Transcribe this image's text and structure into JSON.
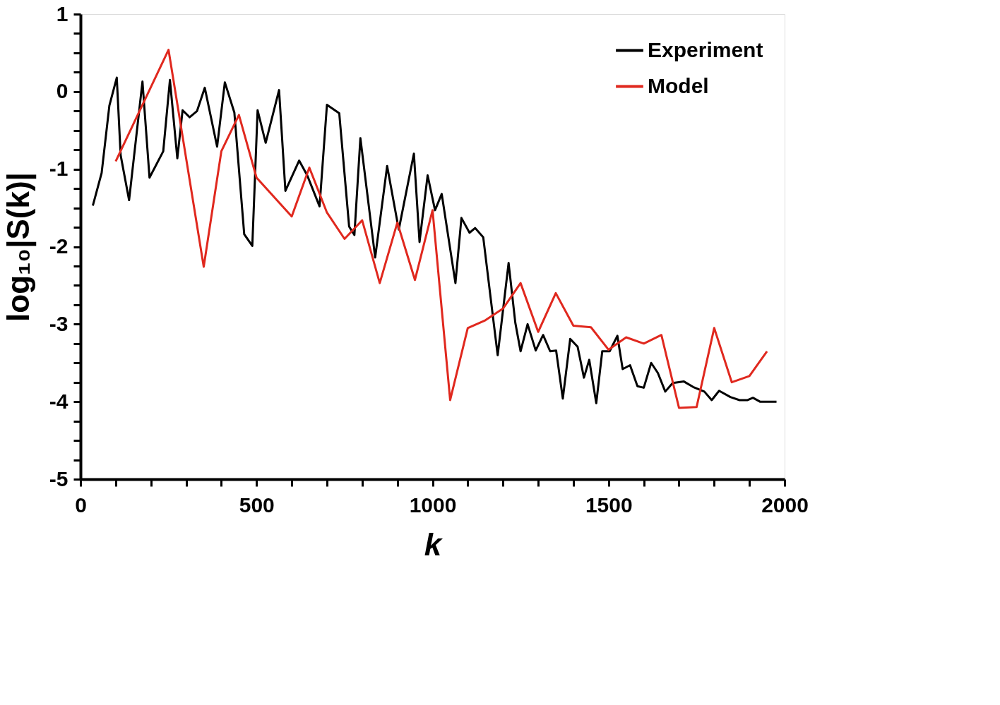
{
  "chart_data": {
    "type": "line",
    "xlabel": "k",
    "ylabel": "log₁₀|S(k)|",
    "xlim": [
      0,
      2000
    ],
    "ylim": [
      -5,
      1
    ],
    "xticks": [
      0,
      {
        "value": 100,
        "label": null
      },
      {
        "value": 200,
        "label": null
      },
      {
        "value": 300,
        "label": null
      },
      {
        "value": 400,
        "label": null
      },
      500,
      {
        "value": 600,
        "label": null
      },
      {
        "value": 700,
        "label": null
      },
      {
        "value": 800,
        "label": null
      },
      {
        "value": 900,
        "label": null
      },
      1000,
      {
        "value": 1100,
        "label": null
      },
      {
        "value": 1200,
        "label": null
      },
      {
        "value": 1300,
        "label": null
      },
      {
        "value": 1400,
        "label": null
      },
      1500,
      {
        "value": 1600,
        "label": null
      },
      {
        "value": 1700,
        "label": null
      },
      {
        "value": 1800,
        "label": null
      },
      {
        "value": 1900,
        "label": null
      },
      2000
    ],
    "yticks": [
      -5,
      {
        "value": -4.75,
        "label": null
      },
      {
        "value": -4.5,
        "label": null
      },
      {
        "value": -4.25,
        "label": null
      },
      -4,
      {
        "value": -3.75,
        "label": null
      },
      {
        "value": -3.5,
        "label": null
      },
      {
        "value": -3.25,
        "label": null
      },
      -3,
      {
        "value": -2.75,
        "label": null
      },
      {
        "value": -2.5,
        "label": null
      },
      {
        "value": -2.25,
        "label": null
      },
      -2,
      {
        "value": -1.75,
        "label": null
      },
      {
        "value": -1.5,
        "label": null
      },
      {
        "value": -1.25,
        "label": null
      },
      -1,
      {
        "value": -0.75,
        "label": null
      },
      {
        "value": -0.5,
        "label": null
      },
      {
        "value": -0.25,
        "label": null
      },
      0,
      {
        "value": 0.25,
        "label": null
      },
      {
        "value": 0.5,
        "label": null
      },
      {
        "value": 0.75,
        "label": null
      },
      1
    ],
    "grid": false,
    "legend": "top right",
    "line_style": "solid",
    "series": [
      {
        "name": "Experiment",
        "color": "#000000",
        "x": [
          35,
          60,
          82,
          103,
          114,
          138,
          176,
          196,
          235,
          254,
          275,
          290,
          310,
          331,
          353,
          388,
          410,
          437,
          465,
          488,
          503,
          526,
          564,
          582,
          621,
          644,
          679,
          700,
          735,
          763,
          778,
          795,
          837,
          871,
          904,
          947,
          963,
          986,
          1007,
          1026,
          1065,
          1082,
          1105,
          1121,
          1144,
          1173,
          1185,
          1216,
          1235,
          1250,
          1270,
          1293,
          1314,
          1334,
          1351,
          1370,
          1391,
          1412,
          1430,
          1445,
          1465,
          1482,
          1503,
          1525,
          1540,
          1561,
          1582,
          1600,
          1621,
          1640,
          1661,
          1682,
          1714,
          1740,
          1772,
          1793,
          1814,
          1846,
          1872,
          1895,
          1910,
          1930,
          1977
        ],
        "values": [
          -1.47,
          -1.05,
          -0.18,
          0.18,
          -0.82,
          -1.4,
          0.13,
          -1.11,
          -0.77,
          0.15,
          -0.86,
          -0.24,
          -0.33,
          -0.25,
          0.05,
          -0.71,
          0.12,
          -0.27,
          -1.84,
          -1.99,
          -0.24,
          -0.66,
          0.02,
          -1.28,
          -0.89,
          -1.08,
          -1.48,
          -0.17,
          -0.28,
          -1.74,
          -1.85,
          -0.6,
          -2.14,
          -0.96,
          -1.78,
          -0.8,
          -1.94,
          -1.08,
          -1.53,
          -1.32,
          -2.47,
          -1.63,
          -1.82,
          -1.76,
          -1.88,
          -2.96,
          -3.4,
          -2.21,
          -2.98,
          -3.35,
          -3.0,
          -3.34,
          -3.14,
          -3.35,
          -3.34,
          -3.96,
          -3.19,
          -3.29,
          -3.69,
          -3.46,
          -4.02,
          -3.35,
          -3.35,
          -3.15,
          -3.58,
          -3.53,
          -3.8,
          -3.82,
          -3.5,
          -3.63,
          -3.87,
          -3.76,
          -3.74,
          -3.81,
          -3.87,
          -3.98,
          -3.86,
          -3.94,
          -3.98,
          -3.98,
          -3.95,
          -4.0,
          -4.0
        ]
      },
      {
        "name": "Model",
        "color": "#e0281e",
        "x": [
          100,
          250,
          350,
          400,
          450,
          500,
          600,
          650,
          700,
          750,
          800,
          850,
          900,
          950,
          1000,
          1050,
          1100,
          1150,
          1200,
          1250,
          1300,
          1350,
          1400,
          1450,
          1500,
          1550,
          1600,
          1650,
          1700,
          1750,
          1800,
          1850,
          1900,
          1950
        ],
        "values": [
          -0.9,
          0.54,
          -2.26,
          -0.77,
          -0.3,
          -1.11,
          -1.61,
          -0.98,
          -1.56,
          -1.9,
          -1.66,
          -2.47,
          -1.69,
          -2.43,
          -1.53,
          -3.98,
          -3.05,
          -2.95,
          -2.8,
          -2.47,
          -3.1,
          -2.6,
          -3.02,
          -3.04,
          -3.33,
          -3.17,
          -3.25,
          -3.14,
          -4.08,
          -4.07,
          -3.05,
          -3.75,
          -3.67,
          -3.35
        ]
      }
    ]
  }
}
